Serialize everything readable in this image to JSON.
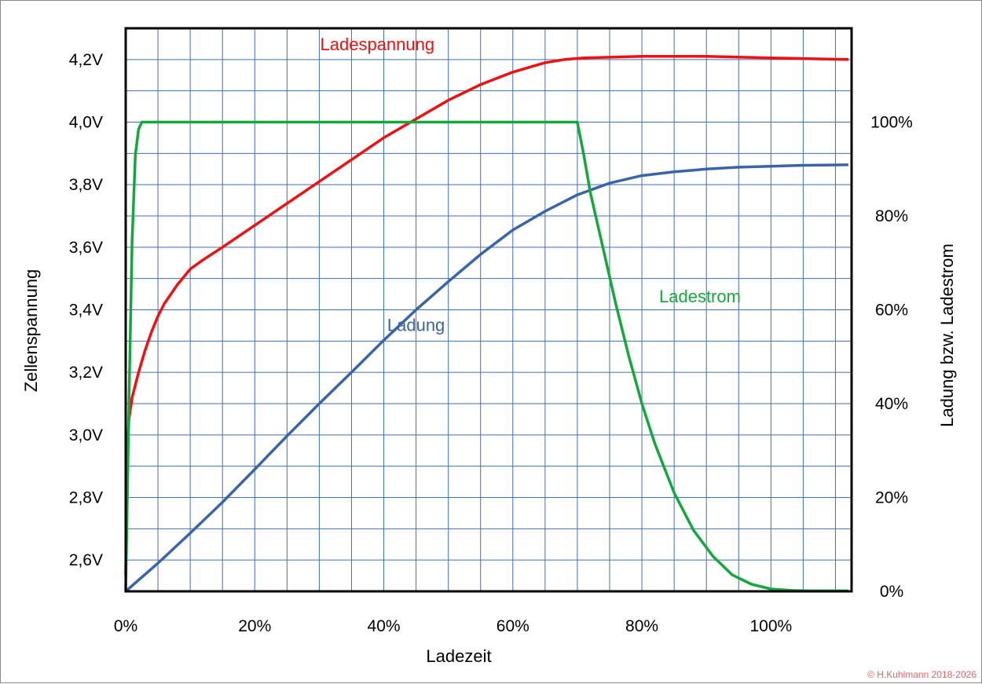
{
  "chart_data": {
    "type": "line",
    "xlabel": "Ladezeit",
    "ylabel_left": "Zellenspannung",
    "ylabel_right": "Ladung bzw. Ladestrom",
    "x_range": [
      0,
      1.125
    ],
    "y_left_range": [
      2.5,
      4.3
    ],
    "y_right_range": [
      0,
      1.2
    ],
    "grid": true,
    "x_ticks": [
      {
        "value": 0,
        "label": "0%"
      },
      {
        "value": 0.2,
        "label": "20%"
      },
      {
        "value": 0.4,
        "label": "40%"
      },
      {
        "value": 0.6,
        "label": "60%"
      },
      {
        "value": 0.8,
        "label": "80%"
      },
      {
        "value": 1.0,
        "label": "100%"
      }
    ],
    "y_left_ticks": [
      {
        "value": 2.6,
        "label": "2,6V"
      },
      {
        "value": 2.8,
        "label": "2,8V"
      },
      {
        "value": 3.0,
        "label": "3,0V"
      },
      {
        "value": 3.2,
        "label": "3,2V"
      },
      {
        "value": 3.4,
        "label": "3,4V"
      },
      {
        "value": 3.6,
        "label": "3,6V"
      },
      {
        "value": 3.8,
        "label": "3,8V"
      },
      {
        "value": 4.0,
        "label": "4,0V"
      },
      {
        "value": 4.2,
        "label": "4,2V"
      }
    ],
    "y_right_ticks": [
      {
        "value": 0,
        "label": "0%"
      },
      {
        "value": 0.2,
        "label": "20%"
      },
      {
        "value": 0.4,
        "label": "40%"
      },
      {
        "value": 0.6,
        "label": "60%"
      },
      {
        "value": 0.8,
        "label": "80%"
      },
      {
        "value": 1.0,
        "label": "100%"
      }
    ],
    "series": [
      {
        "name": "Ladespannung",
        "axis": "left",
        "color": "#ee1111",
        "x": [
          0,
          0.002,
          0.005,
          0.01,
          0.02,
          0.03,
          0.04,
          0.05,
          0.06,
          0.08,
          0.1,
          0.12,
          0.15,
          0.2,
          0.25,
          0.3,
          0.35,
          0.4,
          0.45,
          0.5,
          0.55,
          0.6,
          0.65,
          0.68,
          0.71,
          0.8,
          0.9,
          1.0,
          1.12
        ],
        "y": [
          2.55,
          2.9,
          3.05,
          3.12,
          3.2,
          3.27,
          3.33,
          3.38,
          3.42,
          3.48,
          3.53,
          3.56,
          3.6,
          3.67,
          3.74,
          3.81,
          3.88,
          3.95,
          4.01,
          4.07,
          4.12,
          4.16,
          4.19,
          4.2,
          4.205,
          4.21,
          4.21,
          4.205,
          4.2
        ]
      },
      {
        "name": "Ladung",
        "axis": "right",
        "color": "#3a64a8",
        "x": [
          0,
          0.05,
          0.1,
          0.15,
          0.2,
          0.25,
          0.3,
          0.35,
          0.4,
          0.45,
          0.5,
          0.55,
          0.6,
          0.65,
          0.7,
          0.75,
          0.8,
          0.85,
          0.9,
          0.95,
          1.0,
          1.05,
          1.12
        ],
        "y": [
          0,
          0.06,
          0.124,
          0.19,
          0.26,
          0.331,
          0.4,
          0.467,
          0.535,
          0.6,
          0.66,
          0.718,
          0.77,
          0.81,
          0.845,
          0.87,
          0.886,
          0.894,
          0.9,
          0.904,
          0.906,
          0.908,
          0.909
        ]
      },
      {
        "name": "Ladestrom",
        "axis": "right",
        "color": "#14a83c",
        "x": [
          0,
          0.005,
          0.01,
          0.015,
          0.02,
          0.025,
          0.1,
          0.3,
          0.5,
          0.7,
          0.71,
          0.72,
          0.74,
          0.76,
          0.78,
          0.8,
          0.82,
          0.85,
          0.88,
          0.91,
          0.94,
          0.97,
          1.0,
          1.03,
          1.06,
          1.12
        ],
        "y": [
          0,
          0.4,
          0.75,
          0.93,
          0.985,
          1.0,
          1.0,
          1.0,
          1.0,
          1.0,
          0.93,
          0.85,
          0.73,
          0.61,
          0.5,
          0.4,
          0.315,
          0.21,
          0.13,
          0.075,
          0.035,
          0.015,
          0.005,
          0.002,
          0.001,
          0.001
        ]
      }
    ],
    "credit": "© H.Kuhlmann 2018-2026"
  }
}
